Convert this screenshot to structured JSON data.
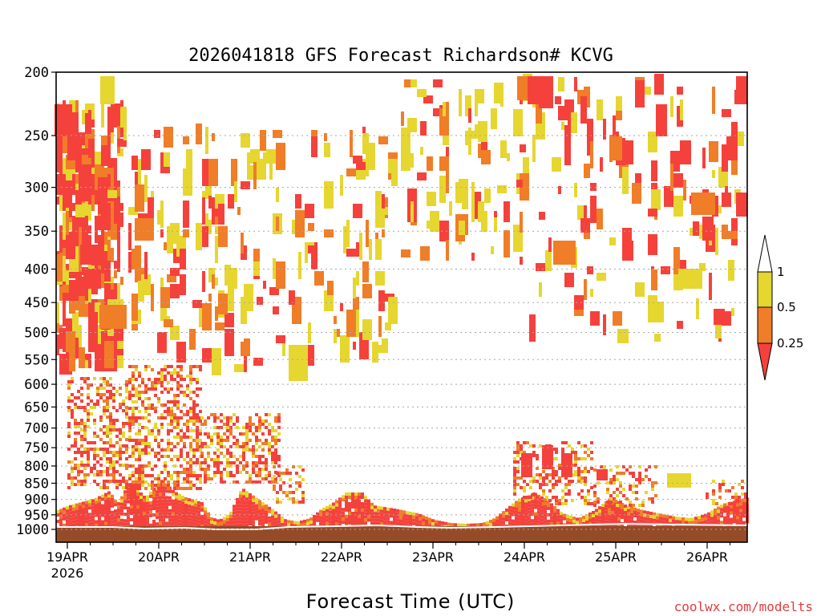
{
  "chart_data": {
    "type": "heatmap",
    "title": "2026041818 GFS Forecast Richardson# KCVG",
    "xlabel": "Forecast Time (UTC)",
    "ylabel": "",
    "y_scale": "log",
    "y_inverted": true,
    "ylim": [
      1000,
      200
    ],
    "y_ticks": [
      200,
      250,
      300,
      350,
      400,
      450,
      500,
      550,
      600,
      650,
      700,
      750,
      800,
      850,
      900,
      950,
      1000
    ],
    "x_ticks": [
      {
        "label": "19APR",
        "sublabel": "2026"
      },
      {
        "label": "20APR"
      },
      {
        "label": "21APR"
      },
      {
        "label": "22APR"
      },
      {
        "label": "23APR"
      },
      {
        "label": "24APR"
      },
      {
        "label": "25APR"
      },
      {
        "label": "26APR"
      }
    ],
    "colorbar": {
      "labels": [
        "1",
        "0.5",
        "0.25"
      ],
      "colors": [
        "#ffffff",
        "#e6d630",
        "#f07d28",
        "#f5413c"
      ]
    },
    "ground_color": "#964b28",
    "credit": "coolwx.com/modelts"
  }
}
